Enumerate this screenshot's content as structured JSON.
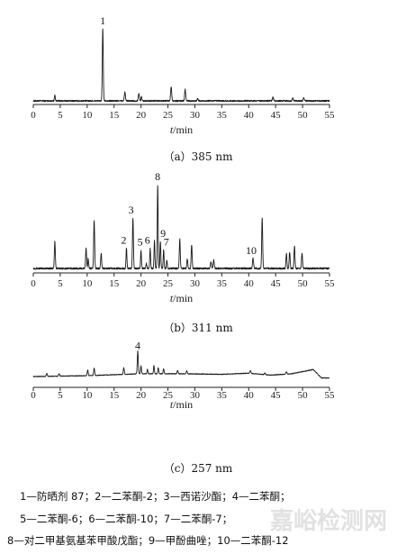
{
  "chart_data": [
    {
      "type": "line",
      "caption": "（a）385 nm",
      "xlabel": {
        "italic": "t",
        "rest": "/min"
      },
      "xlim": [
        0,
        55
      ],
      "xticks": [
        0,
        5,
        10,
        15,
        20,
        25,
        30,
        35,
        40,
        45,
        50,
        55
      ],
      "baseline_noise": 0.02,
      "peaks": [
        {
          "t": 4.0,
          "h": 0.08,
          "w": 0.08
        },
        {
          "t": 12.9,
          "h": 1.0,
          "w": 0.09,
          "label": "1"
        },
        {
          "t": 17.0,
          "h": 0.12,
          "w": 0.1
        },
        {
          "t": 19.6,
          "h": 0.1,
          "w": 0.1
        },
        {
          "t": 20.1,
          "h": 0.06,
          "w": 0.08
        },
        {
          "t": 25.6,
          "h": 0.2,
          "w": 0.1
        },
        {
          "t": 28.2,
          "h": 0.16,
          "w": 0.1
        },
        {
          "t": 30.5,
          "h": 0.03,
          "w": 0.1
        },
        {
          "t": 44.5,
          "h": 0.05,
          "w": 0.1
        },
        {
          "t": 50.2,
          "h": 0.04,
          "w": 0.1
        },
        {
          "t": 48.2,
          "h": 0.04,
          "w": 0.1
        }
      ]
    },
    {
      "type": "line",
      "caption": "（b）311 nm",
      "xlabel": {
        "italic": "t",
        "rest": "/min"
      },
      "xlim": [
        0,
        55
      ],
      "xticks": [
        0,
        5,
        10,
        15,
        20,
        25,
        30,
        35,
        40,
        45,
        50,
        55
      ],
      "baseline_noise": 0.02,
      "peaks": [
        {
          "t": 4.0,
          "h": 0.32,
          "w": 0.09
        },
        {
          "t": 9.8,
          "h": 0.24,
          "w": 0.09
        },
        {
          "t": 10.2,
          "h": 0.12,
          "w": 0.08
        },
        {
          "t": 11.3,
          "h": 0.58,
          "w": 0.09
        },
        {
          "t": 12.6,
          "h": 0.18,
          "w": 0.09
        },
        {
          "t": 17.3,
          "h": 0.24,
          "w": 0.08,
          "label": "2"
        },
        {
          "t": 18.5,
          "h": 0.6,
          "w": 0.09,
          "label": "3"
        },
        {
          "t": 20.0,
          "h": 0.22,
          "w": 0.08,
          "label": "5"
        },
        {
          "t": 21.0,
          "h": 0.06,
          "w": 0.08
        },
        {
          "t": 21.7,
          "h": 0.24,
          "w": 0.08,
          "label": "6"
        },
        {
          "t": 22.5,
          "h": 0.34,
          "w": 0.08
        },
        {
          "t": 23.1,
          "h": 1.0,
          "w": 0.08,
          "label": "8"
        },
        {
          "t": 23.6,
          "h": 0.32,
          "w": 0.08,
          "label": "9"
        },
        {
          "t": 24.2,
          "h": 0.22,
          "w": 0.08,
          "label": "7"
        },
        {
          "t": 24.8,
          "h": 0.1,
          "w": 0.08
        },
        {
          "t": 27.2,
          "h": 0.35,
          "w": 0.09
        },
        {
          "t": 28.6,
          "h": 0.12,
          "w": 0.09
        },
        {
          "t": 29.4,
          "h": 0.28,
          "w": 0.09
        },
        {
          "t": 33.0,
          "h": 0.08,
          "w": 0.1
        },
        {
          "t": 33.5,
          "h": 0.1,
          "w": 0.1
        },
        {
          "t": 40.8,
          "h": 0.12,
          "w": 0.1,
          "label": "10"
        },
        {
          "t": 42.5,
          "h": 0.6,
          "w": 0.09
        },
        {
          "t": 47.0,
          "h": 0.18,
          "w": 0.09
        },
        {
          "t": 47.6,
          "h": 0.2,
          "w": 0.09
        },
        {
          "t": 48.5,
          "h": 0.26,
          "w": 0.09
        },
        {
          "t": 49.9,
          "h": 0.18,
          "w": 0.09
        }
      ]
    },
    {
      "type": "line",
      "caption": "（c）257 nm",
      "xlabel": {
        "italic": "t",
        "rest": "/min"
      },
      "xlim": [
        0,
        55
      ],
      "xticks": [
        0,
        5,
        10,
        15,
        20,
        25,
        30,
        35,
        40,
        45,
        50,
        55
      ],
      "baseline_noise": 0.025,
      "baseline_drift": [
        [
          0,
          0.0
        ],
        [
          10,
          0.03
        ],
        [
          20,
          0.1
        ],
        [
          28,
          0.1
        ],
        [
          35,
          0.08
        ],
        [
          40,
          0.12
        ],
        [
          44,
          0.05
        ],
        [
          48,
          0.1
        ],
        [
          52,
          0.25
        ],
        [
          53.5,
          -0.05
        ],
        [
          55,
          -0.05
        ]
      ],
      "peaks": [
        {
          "t": 2.5,
          "h": 0.1,
          "w": 0.1
        },
        {
          "t": 4.8,
          "h": 0.08,
          "w": 0.1
        },
        {
          "t": 10.1,
          "h": 0.2,
          "w": 0.09
        },
        {
          "t": 11.3,
          "h": 0.26,
          "w": 0.09
        },
        {
          "t": 16.8,
          "h": 0.24,
          "w": 0.09
        },
        {
          "t": 19.4,
          "h": 0.82,
          "w": 0.09,
          "label": "4"
        },
        {
          "t": 20.0,
          "h": 0.28,
          "w": 0.08
        },
        {
          "t": 21.2,
          "h": 0.16,
          "w": 0.08
        },
        {
          "t": 22.4,
          "h": 0.3,
          "w": 0.08
        },
        {
          "t": 23.2,
          "h": 0.22,
          "w": 0.08
        },
        {
          "t": 24.2,
          "h": 0.18,
          "w": 0.08
        },
        {
          "t": 26.8,
          "h": 0.12,
          "w": 0.09
        },
        {
          "t": 28.5,
          "h": 0.1,
          "w": 0.09
        },
        {
          "t": 40.3,
          "h": 0.1,
          "w": 0.1
        },
        {
          "t": 43.0,
          "h": 0.06,
          "w": 0.1
        },
        {
          "t": 47.0,
          "h": 0.08,
          "w": 0.1
        }
      ]
    }
  ],
  "legend_lines": [
    "1—防晒剂 87；2—二苯酮-2；3—西诺沙酯；4—二苯酮；",
    "5—二苯酮-6；6—二苯酮-10；7—二苯酮-7；",
    "8—对二甲基氨基苯甲酸戊酯；9—甲酚曲唑；10—二苯酮-12"
  ],
  "watermark": "嘉峪检测网",
  "colors": {
    "trace": "#1a1a1a",
    "axis": "#222222",
    "text": "#111111"
  }
}
